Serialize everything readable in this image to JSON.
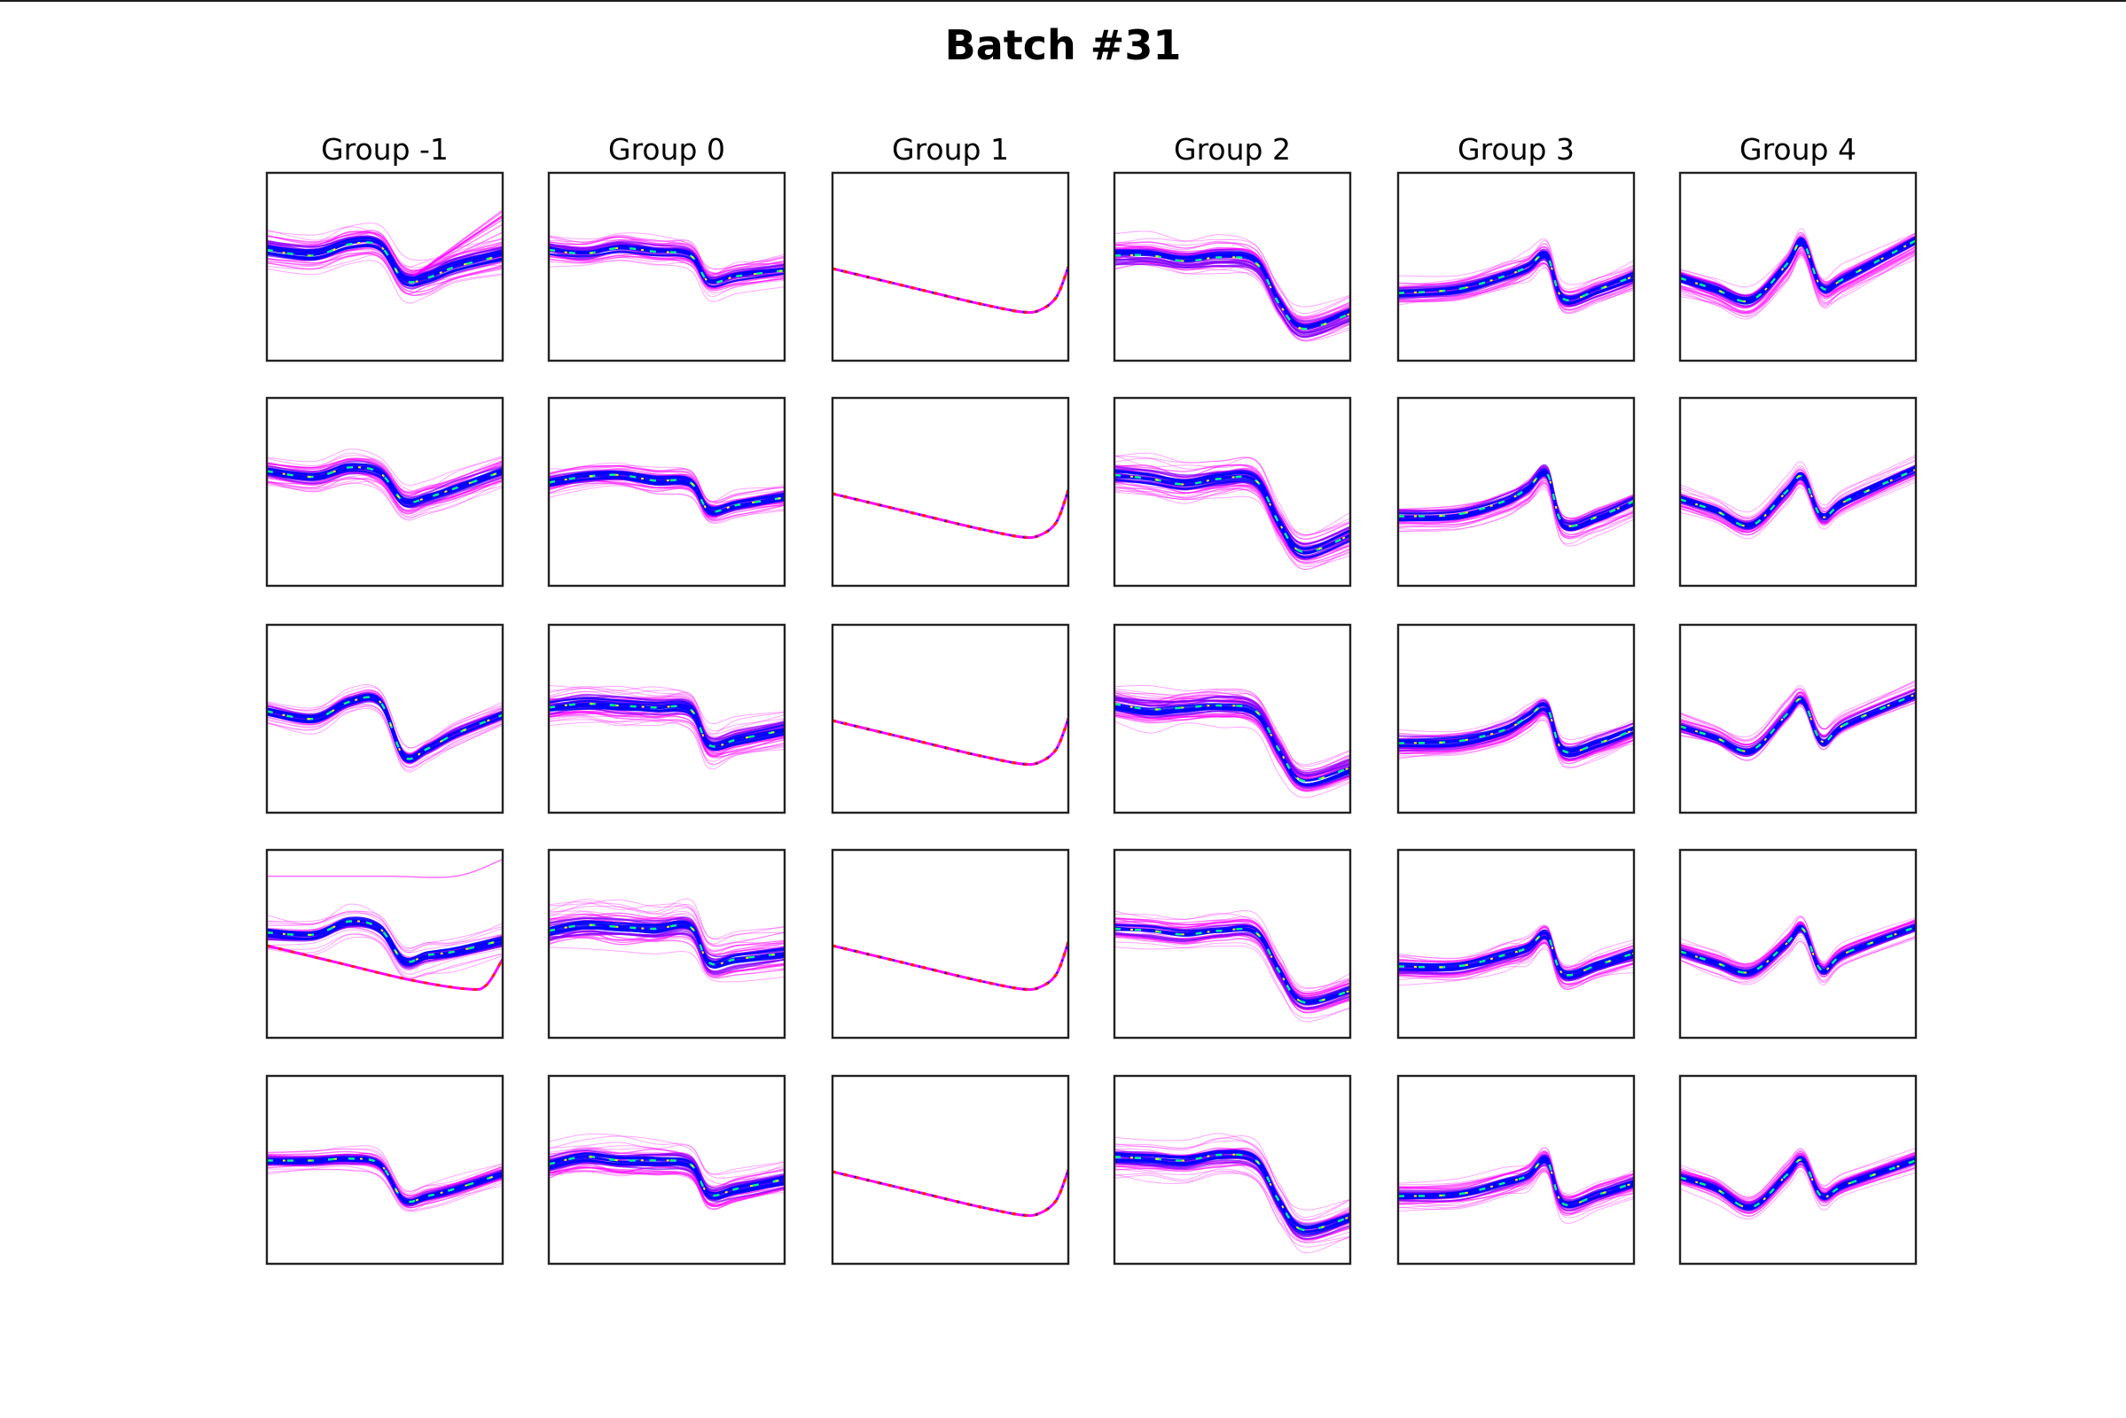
{
  "figure": {
    "title": "Batch #31"
  },
  "chart_data": {
    "type": "line",
    "title": "Batch #31",
    "xlabel": "",
    "ylabel": "",
    "grid": false,
    "ticks": false,
    "groups": [
      "Group -1",
      "Group 0",
      "Group 1",
      "Group 2",
      "Group 3",
      "Group 4"
    ],
    "rows": 5,
    "xlim": [
      0,
      100
    ],
    "ylim": [
      0,
      100
    ],
    "note": "Each panel shows a density-colored bundle of trajectories; the values are estimated medians (panel data units, y up) with an approximate spread.",
    "colors": {
      "dense": "#0000ff",
      "medium": "#7a00ff",
      "sparse": "#ff00ff",
      "peak_a": "#00ff88",
      "peak_b": "#ffee00",
      "peak_c": "#ff2200"
    },
    "panels": [
      {
        "group": "Group -1",
        "row": 1,
        "x": [
          0,
          20,
          35,
          48,
          58,
          68,
          80,
          100
        ],
        "y": [
          59,
          56,
          62,
          61,
          43,
          44,
          50,
          56
        ],
        "spread": 5,
        "stray": {
          "x": [
            62,
            100
          ],
          "y": [
            45,
            75
          ]
        }
      },
      {
        "group": "Group -1",
        "row": 2,
        "x": [
          0,
          20,
          35,
          48,
          58,
          68,
          80,
          100
        ],
        "y": [
          61,
          58,
          63,
          60,
          45,
          47,
          52,
          61
        ],
        "spread": 4
      },
      {
        "group": "Group -1",
        "row": 3,
        "x": [
          0,
          20,
          35,
          48,
          58,
          68,
          80,
          100
        ],
        "y": [
          54,
          50,
          59,
          59,
          30,
          34,
          42,
          52
        ],
        "spread": 3
      },
      {
        "group": "Group -1",
        "row": 4,
        "x": [
          0,
          20,
          35,
          48,
          58,
          68,
          80,
          100
        ],
        "y": [
          56,
          55,
          62,
          58,
          41,
          44,
          46,
          52
        ],
        "spread": 4,
        "extra": {
          "x": [
            0,
            30,
            60,
            85,
            93,
            100
          ],
          "y": [
            49,
            40,
            31,
            26,
            28,
            42
          ]
        },
        "top": {
          "x": [
            0,
            50,
            80,
            100
          ],
          "y": [
            86,
            86,
            86,
            95
          ]
        }
      },
      {
        "group": "Group -1",
        "row": 5,
        "x": [
          0,
          20,
          35,
          48,
          58,
          68,
          80,
          100
        ],
        "y": [
          55,
          55,
          56,
          53,
          34,
          36,
          40,
          48
        ],
        "spread": 3
      },
      {
        "group": "Group 0",
        "row": 1,
        "x": [
          0,
          15,
          30,
          45,
          60,
          68,
          80,
          100
        ],
        "y": [
          59,
          57,
          60,
          58,
          56,
          42,
          45,
          48
        ],
        "spread": 4
      },
      {
        "group": "Group 0",
        "row": 2,
        "x": [
          0,
          15,
          30,
          45,
          60,
          68,
          80,
          100
        ],
        "y": [
          55,
          58,
          59,
          56,
          55,
          40,
          43,
          47
        ],
        "spread": 4
      },
      {
        "group": "Group 0",
        "row": 3,
        "x": [
          0,
          15,
          30,
          45,
          60,
          68,
          80,
          100
        ],
        "y": [
          56,
          58,
          57,
          56,
          55,
          36,
          39,
          44
        ],
        "spread": 5
      },
      {
        "group": "Group 0",
        "row": 4,
        "x": [
          0,
          15,
          30,
          45,
          60,
          68,
          80,
          100
        ],
        "y": [
          57,
          60,
          59,
          58,
          59,
          40,
          42,
          45
        ],
        "spread": 6
      },
      {
        "group": "Group 0",
        "row": 5,
        "x": [
          0,
          15,
          30,
          45,
          60,
          68,
          80,
          100
        ],
        "y": [
          53,
          57,
          55,
          55,
          53,
          37,
          40,
          45
        ],
        "spread": 5
      },
      {
        "group": "Group 1",
        "row": 1,
        "x": [
          0,
          20,
          40,
          60,
          80,
          88,
          95,
          100
        ],
        "y": [
          49,
          43,
          37,
          31,
          26,
          27,
          34,
          50
        ],
        "spread": 0.6
      },
      {
        "group": "Group 1",
        "row": 2,
        "x": [
          0,
          20,
          40,
          60,
          80,
          88,
          95,
          100
        ],
        "y": [
          49,
          43,
          37,
          31,
          26,
          27,
          34,
          51
        ],
        "spread": 0.6
      },
      {
        "group": "Group 1",
        "row": 3,
        "x": [
          0,
          20,
          40,
          60,
          80,
          88,
          95,
          100
        ],
        "y": [
          49,
          43,
          37,
          31,
          26,
          27,
          34,
          50
        ],
        "spread": 0.6
      },
      {
        "group": "Group 1",
        "row": 4,
        "x": [
          0,
          20,
          40,
          60,
          80,
          88,
          95,
          100
        ],
        "y": [
          49,
          43,
          37,
          31,
          26,
          27,
          34,
          51
        ],
        "spread": 0.6
      },
      {
        "group": "Group 1",
        "row": 5,
        "x": [
          0,
          20,
          40,
          60,
          80,
          88,
          95,
          100
        ],
        "y": [
          49,
          43,
          37,
          31,
          26,
          27,
          34,
          50
        ],
        "spread": 0.6
      },
      {
        "group": "Group 2",
        "row": 1,
        "x": [
          0,
          15,
          30,
          45,
          60,
          70,
          80,
          100
        ],
        "y": [
          56,
          56,
          53,
          55,
          52,
          30,
          17,
          25
        ],
        "spread": 5
      },
      {
        "group": "Group 2",
        "row": 2,
        "x": [
          0,
          15,
          30,
          45,
          60,
          70,
          80,
          100
        ],
        "y": [
          59,
          57,
          54,
          57,
          56,
          33,
          18,
          27
        ],
        "spread": 5
      },
      {
        "group": "Group 2",
        "row": 3,
        "x": [
          0,
          15,
          30,
          45,
          60,
          70,
          80,
          100
        ],
        "y": [
          58,
          55,
          56,
          57,
          54,
          33,
          17,
          24
        ],
        "spread": 5
      },
      {
        "group": "Group 2",
        "row": 4,
        "x": [
          0,
          15,
          30,
          45,
          60,
          70,
          80,
          100
        ],
        "y": [
          58,
          57,
          55,
          57,
          56,
          35,
          19,
          25
        ],
        "spread": 4
      },
      {
        "group": "Group 2",
        "row": 5,
        "x": [
          0,
          15,
          30,
          45,
          60,
          70,
          80,
          100
        ],
        "y": [
          57,
          56,
          55,
          58,
          55,
          33,
          18,
          25
        ],
        "spread": 5
      },
      {
        "group": "Group 3",
        "row": 1,
        "x": [
          0,
          25,
          45,
          55,
          63,
          70,
          85,
          100
        ],
        "y": [
          36,
          38,
          45,
          50,
          56,
          33,
          38,
          45
        ],
        "spread": 4
      },
      {
        "group": "Group 3",
        "row": 2,
        "x": [
          0,
          25,
          45,
          55,
          63,
          70,
          85,
          100
        ],
        "y": [
          37,
          38,
          45,
          52,
          60,
          33,
          37,
          45
        ],
        "spread": 4
      },
      {
        "group": "Group 3",
        "row": 3,
        "x": [
          0,
          25,
          45,
          55,
          63,
          70,
          85,
          100
        ],
        "y": [
          37,
          38,
          44,
          51,
          56,
          33,
          37,
          44
        ],
        "spread": 4
      },
      {
        "group": "Group 3",
        "row": 4,
        "x": [
          0,
          25,
          45,
          55,
          63,
          70,
          85,
          100
        ],
        "y": [
          38,
          38,
          44,
          48,
          55,
          34,
          39,
          45
        ],
        "spread": 4
      },
      {
        "group": "Group 3",
        "row": 5,
        "x": [
          0,
          25,
          45,
          55,
          63,
          70,
          85,
          100
        ],
        "y": [
          36,
          37,
          43,
          47,
          55,
          32,
          37,
          43
        ],
        "spread": 4
      },
      {
        "group": "Group 4",
        "row": 1,
        "x": [
          0,
          15,
          30,
          45,
          52,
          60,
          70,
          100
        ],
        "y": [
          44,
          38,
          32,
          51,
          63,
          39,
          44,
          64
        ],
        "spread": 4
      },
      {
        "group": "Group 4",
        "row": 2,
        "x": [
          0,
          15,
          30,
          45,
          52,
          60,
          70,
          100
        ],
        "y": [
          46,
          40,
          32,
          50,
          58,
          37,
          45,
          62
        ],
        "spread": 3
      },
      {
        "group": "Group 4",
        "row": 3,
        "x": [
          0,
          15,
          30,
          45,
          52,
          60,
          70,
          100
        ],
        "y": [
          46,
          40,
          33,
          52,
          60,
          38,
          47,
          63
        ],
        "spread": 3
      },
      {
        "group": "Group 4",
        "row": 4,
        "x": [
          0,
          15,
          30,
          45,
          52,
          60,
          70,
          100
        ],
        "y": [
          46,
          40,
          35,
          50,
          58,
          36,
          45,
          59
        ],
        "spread": 3
      },
      {
        "group": "Group 4",
        "row": 5,
        "x": [
          0,
          15,
          30,
          45,
          52,
          60,
          70,
          100
        ],
        "y": [
          46,
          40,
          30,
          47,
          55,
          36,
          42,
          55
        ],
        "spread": 3
      }
    ]
  }
}
